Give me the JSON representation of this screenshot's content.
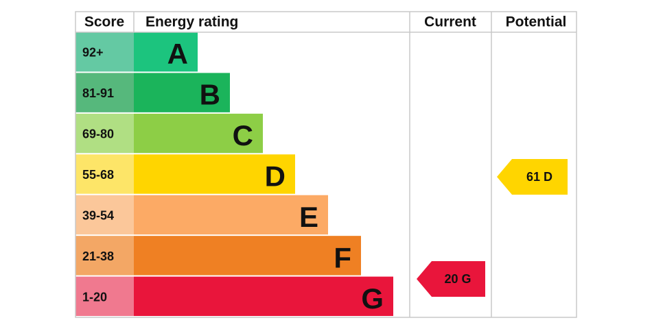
{
  "header": {
    "score": "Score",
    "rating": "Energy rating",
    "current": "Current",
    "potential": "Potential"
  },
  "bands": [
    {
      "score": "92+",
      "letter": "A"
    },
    {
      "score": "81-91",
      "letter": "B"
    },
    {
      "score": "69-80",
      "letter": "C"
    },
    {
      "score": "55-68",
      "letter": "D"
    },
    {
      "score": "39-54",
      "letter": "E"
    },
    {
      "score": "21-38",
      "letter": "F"
    },
    {
      "score": "1-20",
      "letter": "G"
    }
  ],
  "current": {
    "label": "20 G"
  },
  "potential": {
    "label": "61 D"
  }
}
